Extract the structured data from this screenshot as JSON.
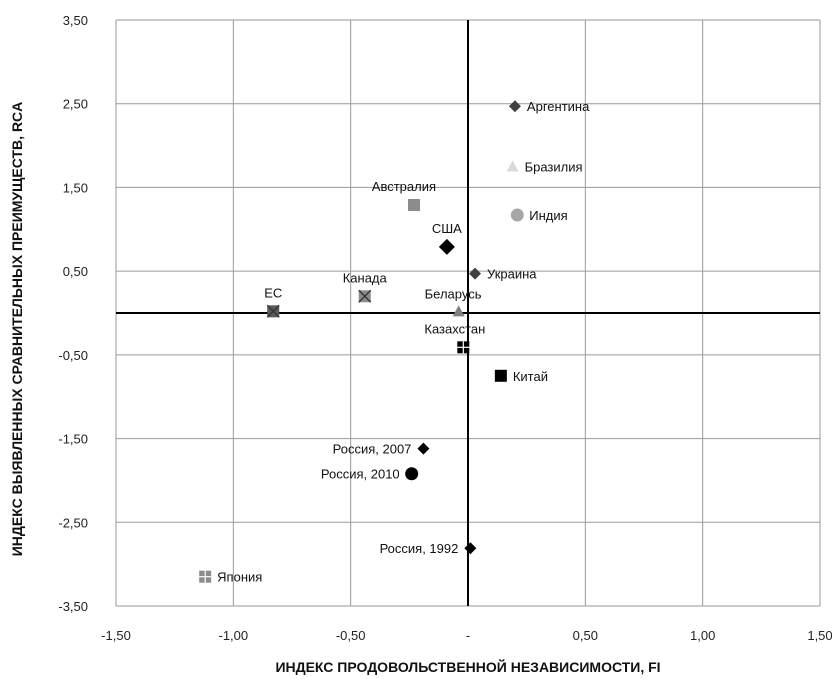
{
  "chart_data": {
    "type": "scatter",
    "xlabel": "ИНДЕКС ПРОДОВОЛЬСТВЕННОЙ НЕЗАВИСИМОСТИ, FI",
    "ylabel": "ИНДЕКС ВЫЯВЛЕННЫХ СРАВНИТЕЛЬНЫХ ПРЕИМУЩЕСТВ, RCA",
    "xlim": [
      -1.5,
      1.5
    ],
    "ylim": [
      -3.5,
      3.5
    ],
    "xticks": [
      -1.5,
      -1.0,
      -0.5,
      0,
      0.5,
      1.0,
      1.5
    ],
    "yticks": [
      -3.5,
      -2.5,
      -1.5,
      -0.5,
      0.5,
      1.5,
      2.5,
      3.5
    ],
    "xtick_labels": [
      "-1,50",
      "-1,00",
      "-0,50",
      "-",
      "0,50",
      "1,00",
      "1,50"
    ],
    "ytick_labels": [
      "-3,50",
      "-2,50",
      "-1,50",
      "-0,50",
      "0,50",
      "1,50",
      "2,50",
      "3,50"
    ],
    "grid": true,
    "points": [
      {
        "label": "Аргентина",
        "x": 0.2,
        "y": 2.47,
        "marker": "diamond",
        "color": "#404040",
        "label_pos": "right"
      },
      {
        "label": "Бразилия",
        "x": 0.19,
        "y": 1.75,
        "marker": "triangle",
        "color": "#d9d9d9",
        "label_pos": "right"
      },
      {
        "label": "Индия",
        "x": 0.21,
        "y": 1.17,
        "marker": "circle",
        "color": "#a6a6a6",
        "label_pos": "right"
      },
      {
        "label": "Австралия",
        "x": -0.23,
        "y": 1.29,
        "marker": "square",
        "color": "#8c8c8c",
        "label_pos": "above-left"
      },
      {
        "label": "США",
        "x": -0.09,
        "y": 0.79,
        "marker": "diamond",
        "color": "#000000",
        "label_pos": "above"
      },
      {
        "label": "Украина",
        "x": 0.03,
        "y": 0.47,
        "marker": "diamond",
        "color": "#404040",
        "label_pos": "right"
      },
      {
        "label": "Канада",
        "x": -0.44,
        "y": 0.2,
        "marker": "square-x",
        "color": "#8c8c8c",
        "label_pos": "above"
      },
      {
        "label": "ЕС",
        "x": -0.83,
        "y": 0.02,
        "marker": "square-x",
        "color": "#595959",
        "label_pos": "above"
      },
      {
        "label": "Беларусь",
        "x": -0.04,
        "y": 0.02,
        "marker": "triangle",
        "color": "#808080",
        "label_pos": "above-right"
      },
      {
        "label": "Казахстан",
        "x": -0.02,
        "y": -0.41,
        "marker": "square-plus",
        "color": "#000000",
        "label_pos": "above-left"
      },
      {
        "label": "Китай",
        "x": 0.14,
        "y": -0.75,
        "marker": "square",
        "color": "#000000",
        "label_pos": "right"
      },
      {
        "label": "Россия, 2007",
        "x": -0.19,
        "y": -1.62,
        "marker": "diamond",
        "color": "#000000",
        "label_pos": "left"
      },
      {
        "label": "Россия, 2010",
        "x": -0.24,
        "y": -1.92,
        "marker": "circle",
        "color": "#000000",
        "label_pos": "left"
      },
      {
        "label": "Россия, 1992",
        "x": 0.01,
        "y": -2.81,
        "marker": "diamond",
        "color": "#000000",
        "label_pos": "left"
      },
      {
        "label": "Япония",
        "x": -1.12,
        "y": -3.15,
        "marker": "square-plus",
        "color": "#8c8c8c",
        "label_pos": "right"
      }
    ]
  }
}
